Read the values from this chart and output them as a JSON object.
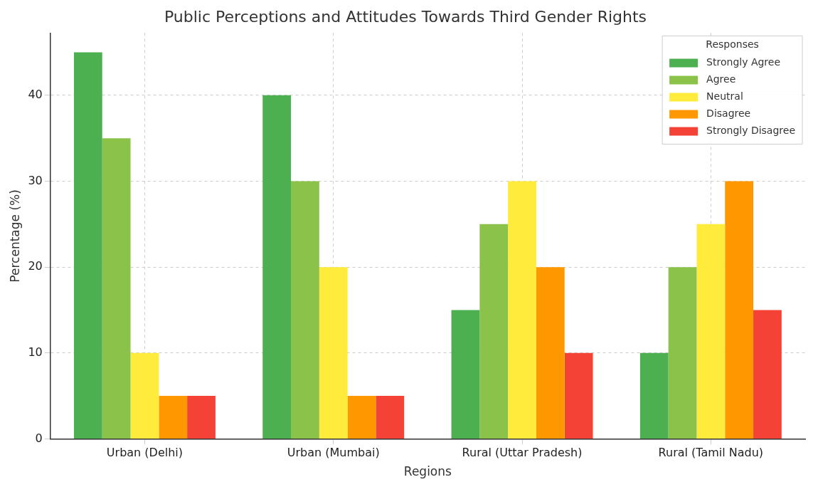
{
  "chart_data": {
    "type": "bar",
    "title": "Public Perceptions and Attitudes Towards Third Gender Rights",
    "xlabel": "Regions",
    "ylabel": "Percentage (%)",
    "legend_title": "Responses",
    "categories": [
      "Urban (Delhi)",
      "Urban (Mumbai)",
      "Rural (Uttar Pradesh)",
      "Rural (Tamil Nadu)"
    ],
    "series": [
      {
        "name": "Strongly Agree",
        "color": "#4caf50",
        "values": [
          45,
          40,
          15,
          10
        ]
      },
      {
        "name": "Agree",
        "color": "#8bc34a",
        "values": [
          35,
          30,
          25,
          20
        ]
      },
      {
        "name": "Neutral",
        "color": "#ffeb3b",
        "values": [
          10,
          20,
          30,
          25
        ]
      },
      {
        "name": "Disagree",
        "color": "#ff9800",
        "values": [
          5,
          5,
          20,
          30
        ]
      },
      {
        "name": "Strongly Disagree",
        "color": "#f44336",
        "values": [
          5,
          5,
          10,
          15
        ]
      }
    ],
    "ylim": [
      0,
      47.25
    ],
    "yticks": [
      0,
      10,
      20,
      30,
      40
    ],
    "grid": true,
    "legend": "top right"
  }
}
